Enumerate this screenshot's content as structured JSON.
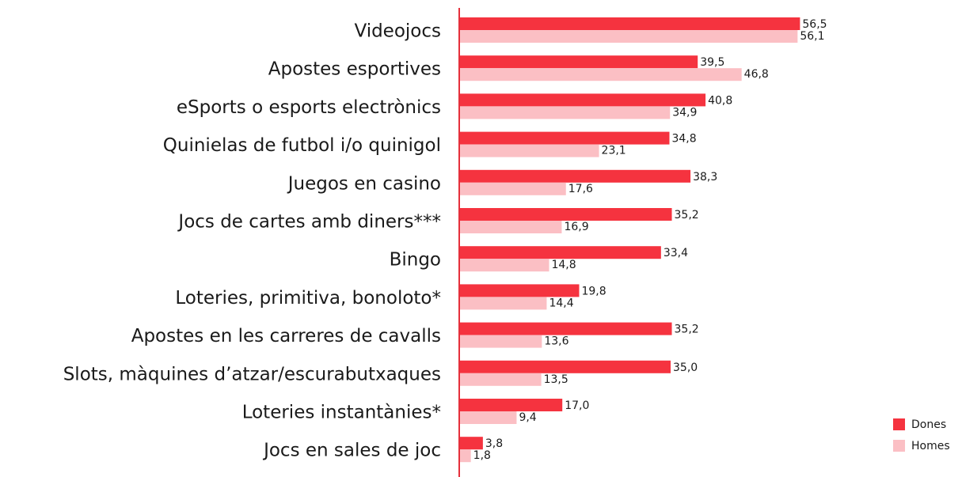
{
  "chart_data": {
    "type": "bar",
    "orientation": "horizontal",
    "categories": [
      "Videojocs",
      "Apostes esportives",
      "eSports o esports electrònics",
      "Quinielas de futbol i/o quinigol",
      "Juegos en casino",
      "Jocs de cartes amb diners***",
      "Bingo",
      "Loteries, primitiva, bonoloto*",
      "Apostes en les carreres de cavalls",
      "Slots, màquines d’atzar/escurabutxaques",
      "Loteries instantànies*",
      "Jocs en sales de joc"
    ],
    "series": [
      {
        "name": "Dones",
        "color": "#f5333f",
        "values": [
          56.5,
          39.5,
          40.8,
          34.8,
          38.3,
          35.2,
          33.4,
          19.8,
          35.2,
          35.0,
          17.0,
          3.8
        ],
        "value_labels": [
          "56,5",
          "39,5",
          "40,8",
          "34,8",
          "38,3",
          "35,2",
          "33,4",
          "19,8",
          "35,2",
          "35,0",
          "17,0",
          "3,8"
        ]
      },
      {
        "name": "Homes",
        "color": "#fbbfc4",
        "values": [
          56.1,
          46.8,
          34.9,
          23.1,
          17.6,
          16.9,
          14.8,
          14.4,
          13.6,
          13.5,
          9.4,
          1.8
        ],
        "value_labels": [
          "56,1",
          "46,8",
          "34,9",
          "23,1",
          "17,6",
          "16,9",
          "14,8",
          "14,4",
          "13,6",
          "13,5",
          "9,4",
          "1,8"
        ]
      }
    ],
    "legend": "bottom-right"
  }
}
